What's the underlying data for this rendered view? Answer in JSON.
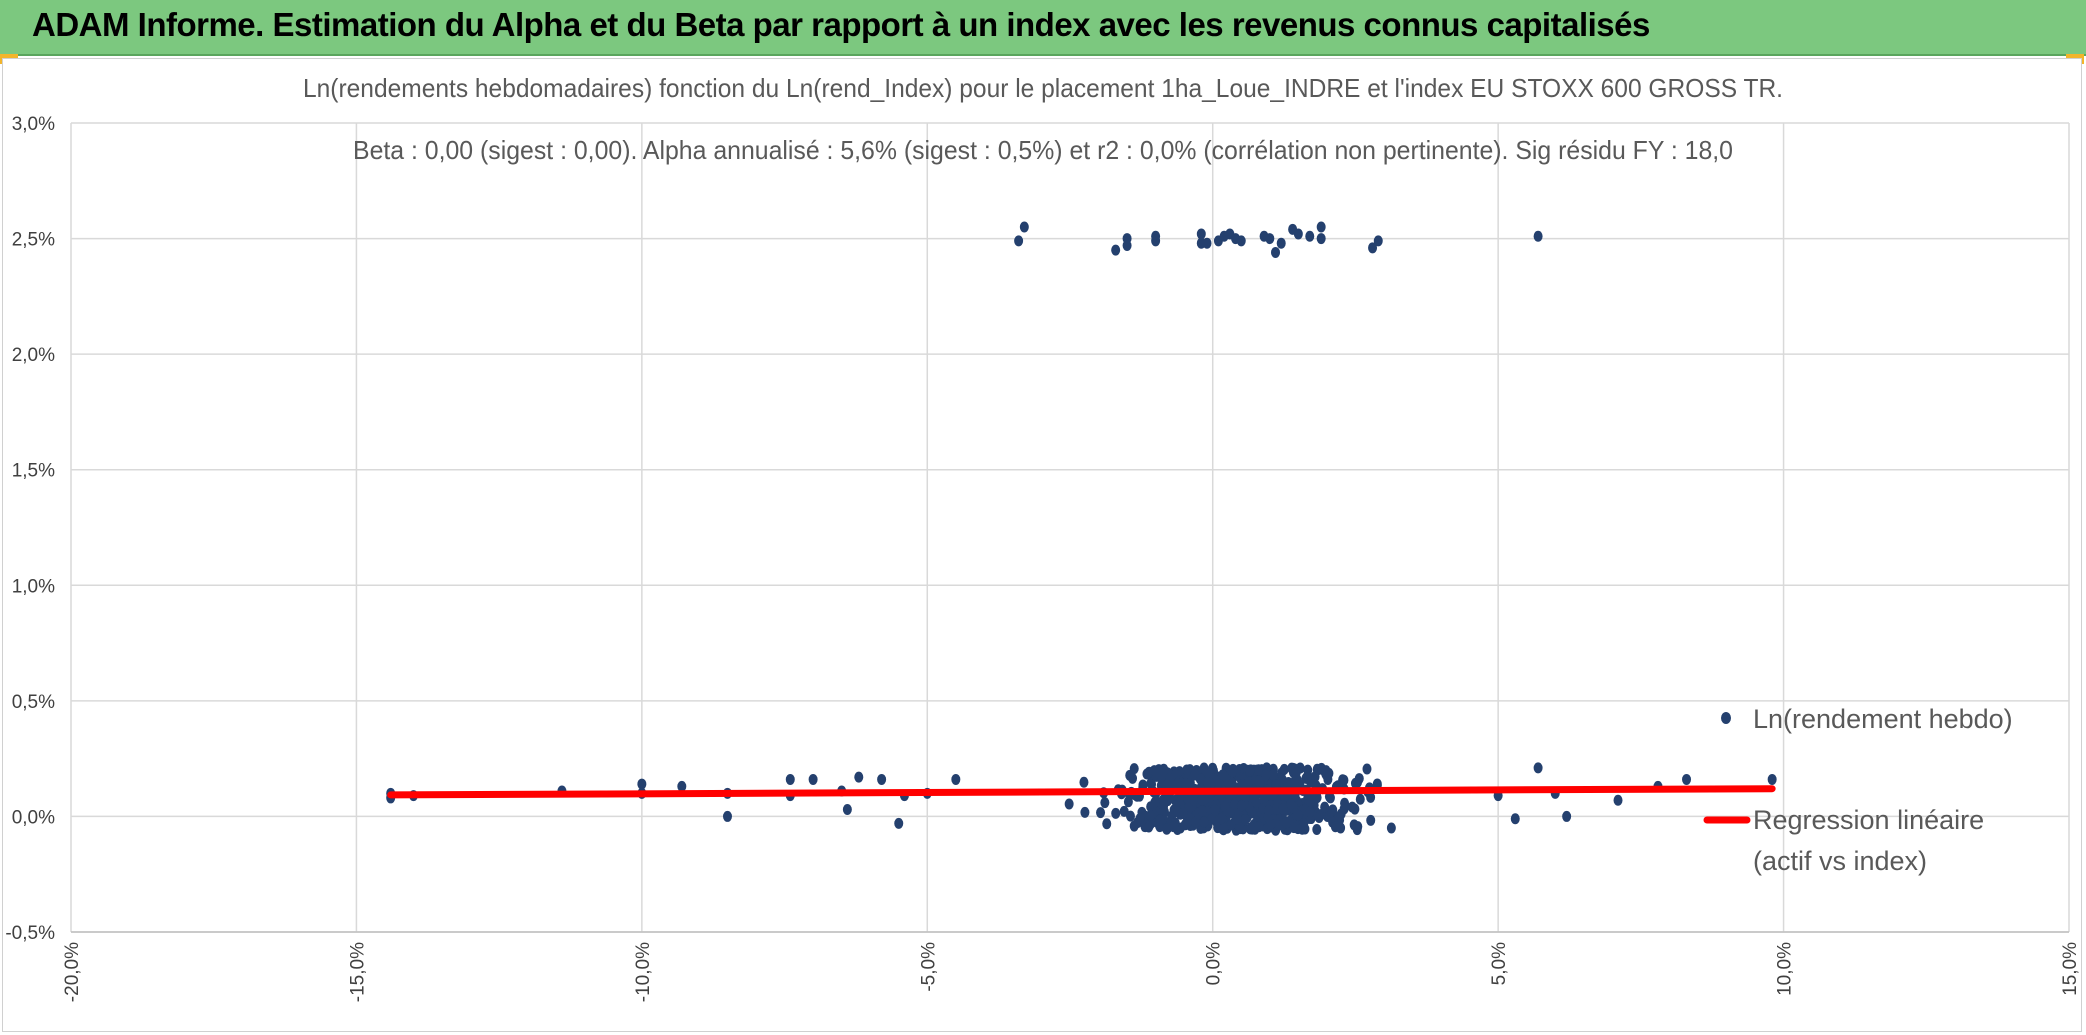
{
  "header": {
    "title": "ADAM Informe. Estimation du Alpha et du Beta par rapport à un index avec les revenus connus capitalisés",
    "background": "#7cc87f"
  },
  "chart_data": {
    "type": "scatter",
    "title": "Ln(rendements hebdomadaires) fonction du Ln(rend_Index) pour le placement 1ha_Loue_INDRE et l'index EU STOXX 600 GROSS TR.",
    "subtitle": "Beta : 0,00 (sigest : 0,00). Alpha annualisé : 5,6% (sigest : 0,5%) et r2 : 0,0% (corrélation non pertinente). Sig résidu FY : 18,0",
    "xlim": [
      -0.2,
      0.15
    ],
    "ylim": [
      -0.005,
      0.03
    ],
    "x_ticks": [
      -0.2,
      -0.15,
      -0.1,
      -0.05,
      0.0,
      0.05,
      0.1,
      0.15
    ],
    "x_tick_labels": [
      "-20,0%",
      "-15,0%",
      "-10,0%",
      "-5,0%",
      "0,0%",
      "5,0%",
      "10,0%",
      "15,0%"
    ],
    "y_ticks": [
      -0.005,
      0.0,
      0.005,
      0.01,
      0.015,
      0.02,
      0.025,
      0.03
    ],
    "y_tick_labels": [
      "-0,5%",
      "0,0%",
      "0,5%",
      "1,0%",
      "1,5%",
      "2,0%",
      "2,5%",
      "3,0%"
    ],
    "grid": true,
    "legend_position": "right",
    "point_color": "#24406e",
    "line_color": "#ff0000",
    "series": [
      {
        "name": "Ln(rendement hebdo)",
        "kind": "points",
        "points": [
          [
            -0.034,
            0.0249
          ],
          [
            -0.033,
            0.0255
          ],
          [
            -0.017,
            0.0245
          ],
          [
            -0.015,
            0.025
          ],
          [
            -0.015,
            0.0247
          ],
          [
            -0.01,
            0.0251
          ],
          [
            -0.01,
            0.0249
          ],
          [
            -0.002,
            0.0252
          ],
          [
            -0.002,
            0.0248
          ],
          [
            -0.001,
            0.0248
          ],
          [
            0.001,
            0.0249
          ],
          [
            0.002,
            0.0251
          ],
          [
            0.003,
            0.0252
          ],
          [
            0.004,
            0.025
          ],
          [
            0.005,
            0.0249
          ],
          [
            0.009,
            0.0251
          ],
          [
            0.01,
            0.025
          ],
          [
            0.011,
            0.0244
          ],
          [
            0.012,
            0.0248
          ],
          [
            0.014,
            0.0254
          ],
          [
            0.015,
            0.0252
          ],
          [
            0.017,
            0.0251
          ],
          [
            0.019,
            0.025
          ],
          [
            0.019,
            0.0255
          ],
          [
            0.028,
            0.0246
          ],
          [
            0.029,
            0.0249
          ],
          [
            0.057,
            0.0251
          ],
          [
            -0.144,
            0.0008
          ],
          [
            -0.144,
            0.001
          ],
          [
            -0.14,
            0.0009
          ],
          [
            -0.114,
            0.0011
          ],
          [
            -0.1,
            0.0014
          ],
          [
            -0.1,
            0.001
          ],
          [
            -0.093,
            0.0013
          ],
          [
            -0.085,
            0.001
          ],
          [
            -0.085,
            0.0
          ],
          [
            -0.074,
            0.0016
          ],
          [
            -0.074,
            0.0009
          ],
          [
            -0.07,
            0.0016
          ],
          [
            -0.065,
            0.0011
          ],
          [
            -0.064,
            0.0003
          ],
          [
            -0.062,
            0.0017
          ],
          [
            -0.058,
            0.0016
          ],
          [
            -0.054,
            0.0009
          ],
          [
            -0.055,
            -0.0003
          ],
          [
            -0.05,
            0.001
          ],
          [
            -0.045,
            0.0016
          ],
          [
            0.057,
            0.0021
          ],
          [
            0.06,
            0.001
          ],
          [
            0.062,
            0.0
          ],
          [
            0.071,
            0.0007
          ],
          [
            0.078,
            0.0013
          ],
          [
            0.083,
            0.0016
          ],
          [
            0.098,
            0.0016
          ],
          [
            0.053,
            -0.0001
          ],
          [
            0.05,
            0.0009
          ]
        ],
        "cloud": {
          "x_mean": 0.004,
          "x_sd": 0.02,
          "x_range": [
            -0.045,
            0.05
          ],
          "y_range": [
            -0.0006,
            0.0021
          ],
          "count": 700
        }
      },
      {
        "name": "Regression linéaire (actif vs index)",
        "kind": "line",
        "points": [
          [
            -0.144,
            0.00093
          ],
          [
            0.098,
            0.0012
          ]
        ]
      }
    ]
  }
}
